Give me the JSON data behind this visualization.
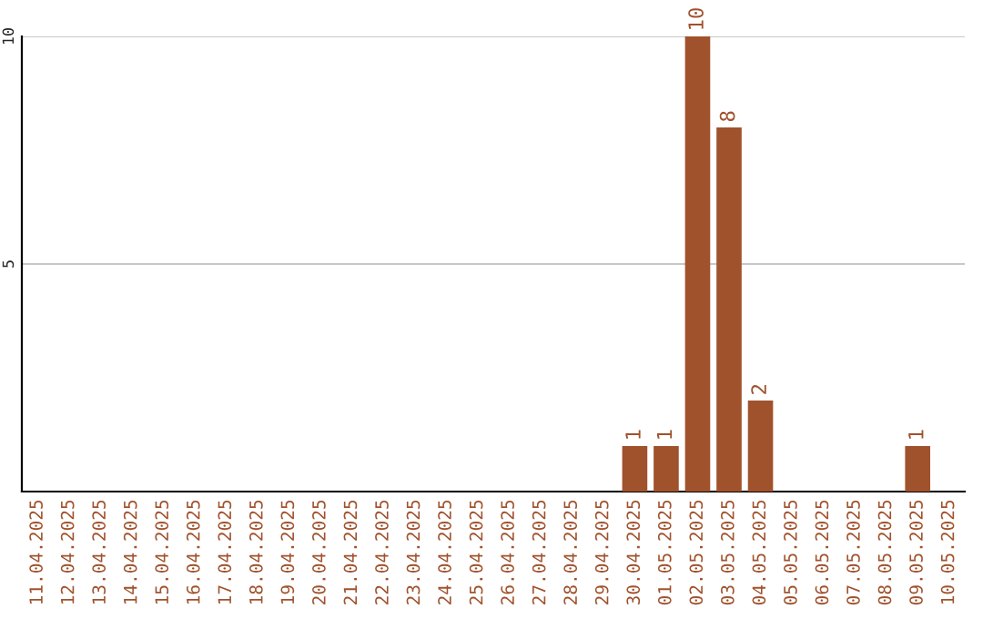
{
  "chart_data": {
    "type": "bar",
    "categories": [
      "11.04.2025",
      "12.04.2025",
      "13.04.2025",
      "14.04.2025",
      "15.04.2025",
      "16.04.2025",
      "17.04.2025",
      "18.04.2025",
      "19.04.2025",
      "20.04.2025",
      "21.04.2025",
      "22.04.2025",
      "23.04.2025",
      "24.04.2025",
      "25.04.2025",
      "26.04.2025",
      "27.04.2025",
      "28.04.2025",
      "29.04.2025",
      "30.04.2025",
      "01.05.2025",
      "02.05.2025",
      "03.05.2025",
      "04.05.2025",
      "05.05.2025",
      "06.05.2025",
      "07.05.2025",
      "08.05.2025",
      "09.05.2025",
      "10.05.2025"
    ],
    "values": [
      0,
      0,
      0,
      0,
      0,
      0,
      0,
      0,
      0,
      0,
      0,
      0,
      0,
      0,
      0,
      0,
      0,
      0,
      0,
      1,
      1,
      10,
      8,
      2,
      0,
      0,
      0,
      0,
      1,
      0
    ],
    "value_labels": [
      null,
      null,
      null,
      null,
      null,
      null,
      null,
      null,
      null,
      null,
      null,
      null,
      null,
      null,
      null,
      null,
      null,
      null,
      null,
      "1",
      "1",
      "10",
      "8",
      "2",
      null,
      null,
      null,
      null,
      "1",
      null
    ],
    "color": "#a0522d",
    "ylim": [
      0,
      10
    ],
    "yticks": [
      5,
      10
    ],
    "grid": "y",
    "legend": false
  }
}
